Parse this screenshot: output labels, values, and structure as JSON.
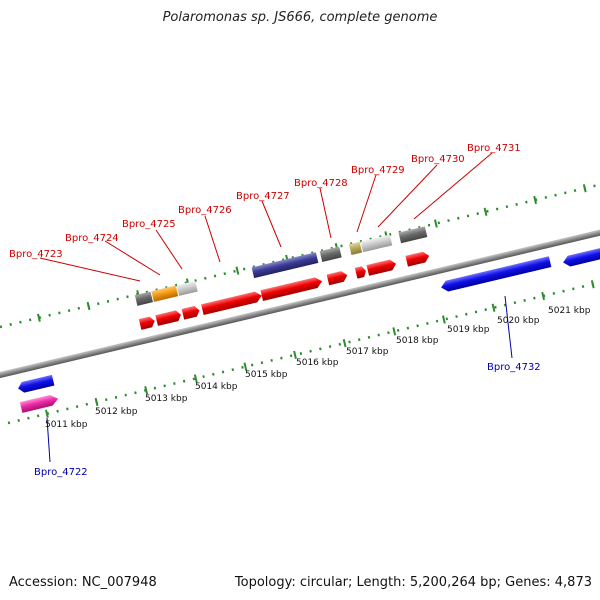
{
  "title": "Polaromonas sp. JS666, complete genome",
  "footer": {
    "accession": "Accession: NC_007948",
    "summary": "Topology: circular; Length: 5,200,264 bp; Genes: 4,873"
  },
  "colors": {
    "forward_label": "#cc0000",
    "reverse_label": "#0000aa",
    "tick": "#2e8b2e",
    "backbone": "#888888"
  },
  "scale_labels": [
    {
      "kbp": 5011,
      "text": "5011 kbp"
    },
    {
      "kbp": 5012,
      "text": "5012 kbp"
    },
    {
      "kbp": 5013,
      "text": "5013 kbp"
    },
    {
      "kbp": 5014,
      "text": "5014 kbp"
    },
    {
      "kbp": 5015,
      "text": "5015 kbp"
    },
    {
      "kbp": 5016,
      "text": "5016 kbp"
    },
    {
      "kbp": 5017,
      "text": "5017 kbp"
    },
    {
      "kbp": 5018,
      "text": "5018 kbp"
    },
    {
      "kbp": 5019,
      "text": "5019 kbp"
    },
    {
      "kbp": 5020,
      "text": "5020 kbp"
    },
    {
      "kbp": 5021,
      "text": "5021 kbp"
    }
  ],
  "gene_labels": [
    {
      "name": "Bpro_4722",
      "strand": "reverse"
    },
    {
      "name": "Bpro_4723",
      "strand": "forward"
    },
    {
      "name": "Bpro_4724",
      "strand": "forward"
    },
    {
      "name": "Bpro_4725",
      "strand": "forward"
    },
    {
      "name": "Bpro_4726",
      "strand": "forward"
    },
    {
      "name": "Bpro_4727",
      "strand": "forward"
    },
    {
      "name": "Bpro_4728",
      "strand": "forward"
    },
    {
      "name": "Bpro_4729",
      "strand": "forward"
    },
    {
      "name": "Bpro_4730",
      "strand": "forward"
    },
    {
      "name": "Bpro_4731",
      "strand": "forward"
    },
    {
      "name": "Bpro_4732",
      "strand": "reverse"
    }
  ]
}
